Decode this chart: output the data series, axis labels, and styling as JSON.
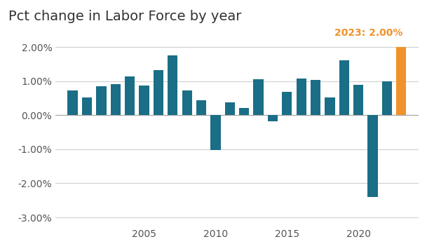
{
  "title": "Pct change in Labor Force by year",
  "years": [
    2000,
    2001,
    2002,
    2003,
    2004,
    2005,
    2006,
    2007,
    2008,
    2009,
    2010,
    2011,
    2012,
    2013,
    2014,
    2015,
    2016,
    2017,
    2018,
    2019,
    2020,
    2021,
    2022,
    2023
  ],
  "values": [
    0.72,
    0.52,
    0.85,
    0.92,
    1.13,
    0.88,
    1.32,
    1.75,
    0.73,
    0.44,
    -1.03,
    0.38,
    0.22,
    1.05,
    -0.17,
    0.68,
    1.08,
    1.03,
    0.52,
    1.62,
    0.9,
    -2.4,
    1.0,
    2.0
  ],
  "bar_color_default": "#1a6e85",
  "bar_color_highlight": "#f0922b",
  "highlight_year": 2023,
  "annotation_text": "2023: 2.00%",
  "annotation_color": "#f0922b",
  "ylim": [
    -3.25,
    2.5
  ],
  "yticks": [
    -3.0,
    -2.0,
    -1.0,
    0.0,
    1.0,
    2.0
  ],
  "ytick_labels": [
    "-3.00%",
    "-2.00%",
    "-1.00%",
    "0.00%",
    "1.00%",
    "2.00%"
  ],
  "xtick_years": [
    2005,
    2010,
    2015,
    2020
  ],
  "xlim": [
    1998.8,
    2024.2
  ],
  "background_color": "#ffffff",
  "grid_color": "#d0d0d0",
  "title_fontsize": 14,
  "annotation_fontsize": 10,
  "tick_fontsize": 10
}
